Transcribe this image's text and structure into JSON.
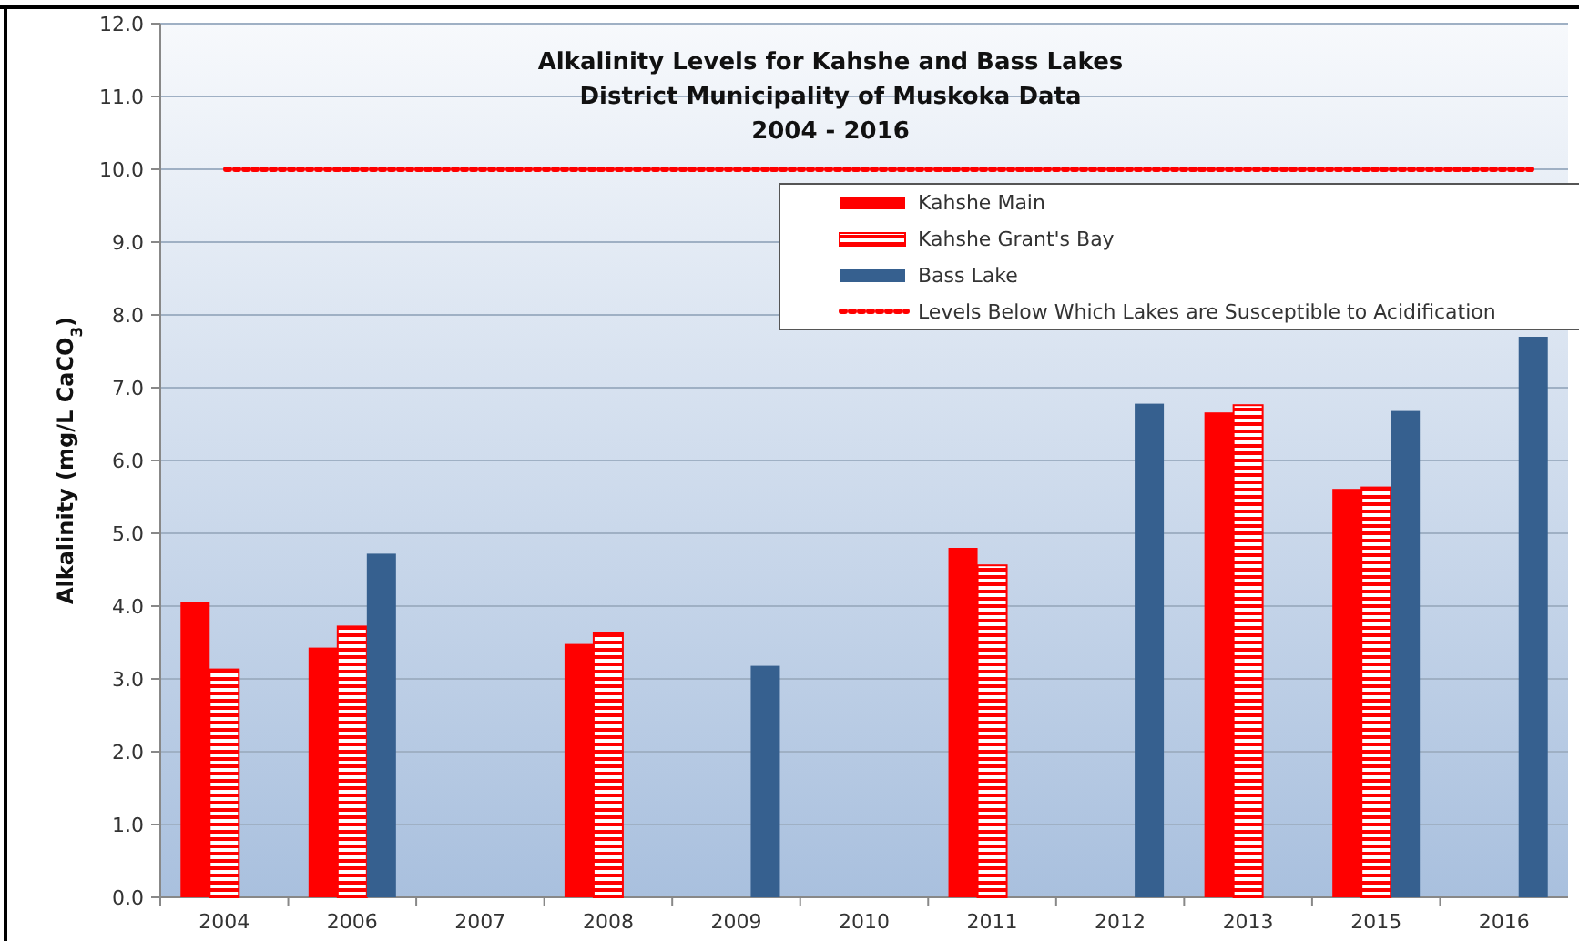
{
  "chart_data": {
    "type": "bar",
    "title": "Alkalinity Levels for Kahshe and Bass Lakes",
    "subtitle": "District Municipality of Muskoka Data\n2004 - 2016",
    "ylabel": "Alkalinity (mg/L CaCO$_{3}$)",
    "categories": [
      "2004",
      "2006",
      "2007",
      "2008",
      "2009",
      "2010",
      "2011",
      "2012",
      "2013",
      "2015",
      "2016"
    ],
    "series": [
      {
        "name": "Kahshe Main",
        "color": "#ff0000",
        "values": [
          4.05,
          3.43,
          null,
          3.48,
          null,
          null,
          4.8,
          null,
          6.66,
          5.61,
          null
        ]
      },
      {
        "name": "Kahshe Grant's Bay",
        "color": "#ff0000",
        "values": [
          3.13,
          3.72,
          null,
          3.63,
          null,
          null,
          4.56,
          null,
          6.76,
          5.63,
          null
        ]
      },
      {
        "name": "Bass Lake",
        "color": "#36608f",
        "values": [
          null,
          4.72,
          null,
          null,
          3.18,
          null,
          null,
          6.78,
          null,
          6.68,
          7.7
        ]
      }
    ],
    "ref_lines": [
      {
        "axis": "y",
        "value": 10,
        "label": "Levels Below Which Lakes are Susceptible to Acidification",
        "color": "#ff0000",
        "line_style": "dotted"
      }
    ],
    "ylim": [
      0,
      12
    ],
    "yticks": [
      {
        "value": 0,
        "label": "0.0"
      },
      {
        "value": 1,
        "label": "1.0"
      },
      {
        "value": 2,
        "label": "2.0"
      },
      {
        "value": 3,
        "label": "3.0"
      },
      {
        "value": 4,
        "label": "4.0"
      },
      {
        "value": 5,
        "label": "5.0"
      },
      {
        "value": 6,
        "label": "6.0"
      },
      {
        "value": 7,
        "label": "7.0"
      },
      {
        "value": 8,
        "label": "8.0"
      },
      {
        "value": 9,
        "label": "9.0"
      },
      {
        "value": 10,
        "label": "10.0"
      },
      {
        "value": 11,
        "label": "11.0"
      },
      {
        "value": 12,
        "label": "12.0"
      }
    ],
    "grid": "y",
    "legend": "top right"
  }
}
